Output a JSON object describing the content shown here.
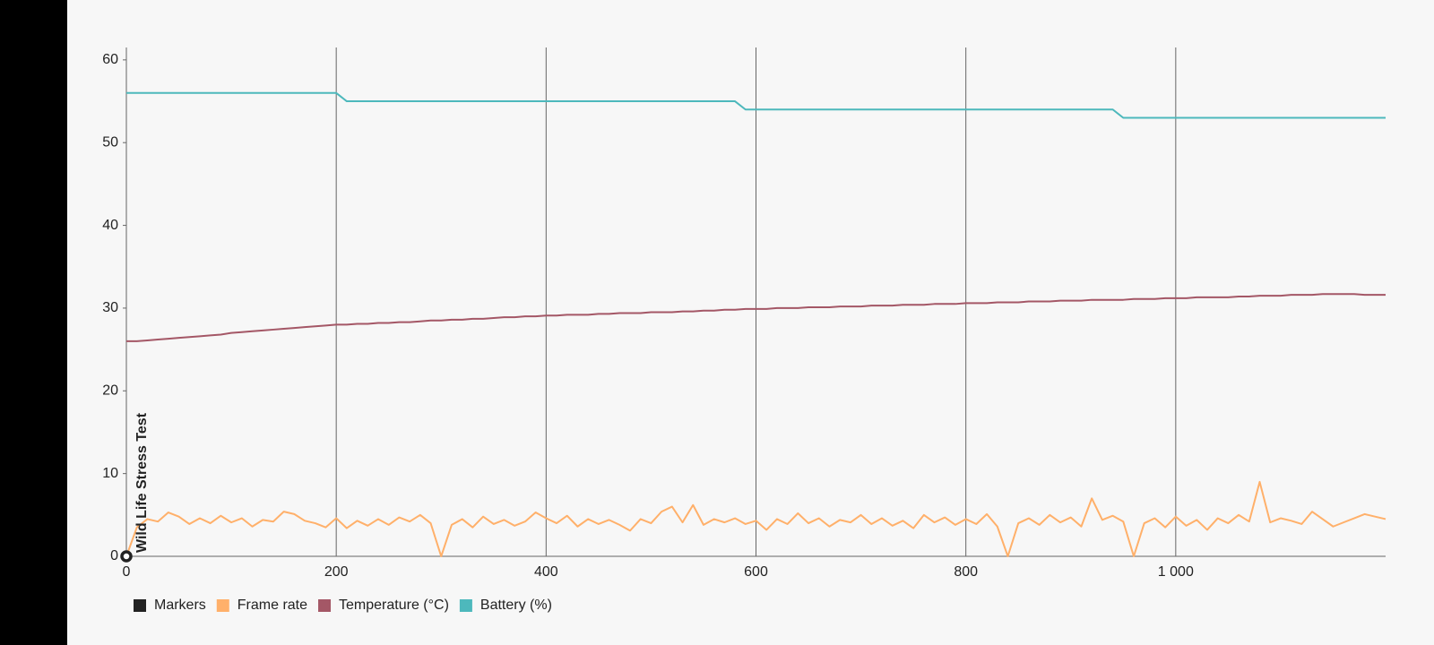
{
  "chart_data": {
    "type": "line",
    "x": [
      0,
      10,
      20,
      30,
      40,
      50,
      60,
      70,
      80,
      90,
      100,
      110,
      120,
      130,
      140,
      150,
      160,
      170,
      180,
      190,
      200,
      210,
      220,
      230,
      240,
      250,
      260,
      270,
      280,
      290,
      300,
      310,
      320,
      330,
      340,
      350,
      360,
      370,
      380,
      390,
      400,
      410,
      420,
      430,
      440,
      450,
      460,
      470,
      480,
      490,
      500,
      510,
      520,
      530,
      540,
      550,
      560,
      570,
      580,
      590,
      600,
      610,
      620,
      630,
      640,
      650,
      660,
      670,
      680,
      690,
      700,
      710,
      720,
      730,
      740,
      750,
      760,
      770,
      780,
      790,
      800,
      810,
      820,
      830,
      840,
      850,
      860,
      870,
      880,
      890,
      900,
      910,
      920,
      930,
      940,
      950,
      960,
      970,
      980,
      990,
      1000,
      1010,
      1020,
      1030,
      1040,
      1050,
      1060,
      1070,
      1080,
      1090,
      1100,
      1110,
      1120,
      1130,
      1140,
      1150,
      1160,
      1170,
      1180,
      1190,
      1200
    ],
    "markers": {
      "name": "Markers",
      "color": "#222222",
      "x": [
        0
      ],
      "labels": [
        "Wild Life Stress Test"
      ]
    },
    "series": [
      {
        "name": "Frame rate",
        "color": "#ffb06a",
        "values": [
          0,
          3.5,
          4.5,
          4.2,
          5.3,
          4.8,
          3.9,
          4.6,
          4.0,
          4.9,
          4.1,
          4.6,
          3.6,
          4.4,
          4.2,
          5.4,
          5.1,
          4.3,
          4.0,
          3.5,
          4.6,
          3.4,
          4.3,
          3.7,
          4.5,
          3.8,
          4.7,
          4.2,
          5.0,
          4.0,
          0,
          3.8,
          4.5,
          3.5,
          4.8,
          3.9,
          4.4,
          3.7,
          4.2,
          5.3,
          4.6,
          4.0,
          4.9,
          3.6,
          4.5,
          3.9,
          4.4,
          3.8,
          3.1,
          4.5,
          4.0,
          5.4,
          6.0,
          4.1,
          6.2,
          3.8,
          4.5,
          4.1,
          4.6,
          3.9,
          4.3,
          3.2,
          4.5,
          3.9,
          5.2,
          4.0,
          4.6,
          3.6,
          4.4,
          4.1,
          5.0,
          3.9,
          4.6,
          3.7,
          4.3,
          3.4,
          5.0,
          4.1,
          4.7,
          3.8,
          4.5,
          3.9,
          5.1,
          3.6,
          0,
          4.0,
          4.6,
          3.8,
          5.0,
          4.1,
          4.7,
          3.6,
          7.0,
          4.4,
          4.9,
          4.2,
          0,
          4.0,
          4.6,
          3.5,
          4.8,
          3.7,
          4.4,
          3.2,
          4.6,
          4.0,
          5.0,
          4.2,
          9.0,
          4.1,
          4.6,
          4.3,
          3.9,
          5.4,
          4.5,
          3.6,
          4.1,
          4.6,
          5.1,
          4.8,
          4.5
        ]
      },
      {
        "name": "Temperature (°C)",
        "color": "#a45766",
        "values": [
          26.0,
          26.0,
          26.1,
          26.2,
          26.3,
          26.4,
          26.5,
          26.6,
          26.7,
          26.8,
          27.0,
          27.1,
          27.2,
          27.3,
          27.4,
          27.5,
          27.6,
          27.7,
          27.8,
          27.9,
          28.0,
          28.0,
          28.1,
          28.1,
          28.2,
          28.2,
          28.3,
          28.3,
          28.4,
          28.5,
          28.5,
          28.6,
          28.6,
          28.7,
          28.7,
          28.8,
          28.9,
          28.9,
          29.0,
          29.0,
          29.1,
          29.1,
          29.2,
          29.2,
          29.2,
          29.3,
          29.3,
          29.4,
          29.4,
          29.4,
          29.5,
          29.5,
          29.5,
          29.6,
          29.6,
          29.7,
          29.7,
          29.8,
          29.8,
          29.9,
          29.9,
          29.9,
          30.0,
          30.0,
          30.0,
          30.1,
          30.1,
          30.1,
          30.2,
          30.2,
          30.2,
          30.3,
          30.3,
          30.3,
          30.4,
          30.4,
          30.4,
          30.5,
          30.5,
          30.5,
          30.6,
          30.6,
          30.6,
          30.7,
          30.7,
          30.7,
          30.8,
          30.8,
          30.8,
          30.9,
          30.9,
          30.9,
          31.0,
          31.0,
          31.0,
          31.0,
          31.1,
          31.1,
          31.1,
          31.2,
          31.2,
          31.2,
          31.3,
          31.3,
          31.3,
          31.3,
          31.4,
          31.4,
          31.5,
          31.5,
          31.5,
          31.6,
          31.6,
          31.6,
          31.7,
          31.7,
          31.7,
          31.7,
          31.6,
          31.6,
          31.6
        ]
      },
      {
        "name": "Battery (%)",
        "color": "#4db8bc",
        "values": [
          56,
          56,
          56,
          56,
          56,
          56,
          56,
          56,
          56,
          56,
          56,
          56,
          56,
          56,
          56,
          56,
          56,
          56,
          56,
          56,
          56,
          55,
          55,
          55,
          55,
          55,
          55,
          55,
          55,
          55,
          55,
          55,
          55,
          55,
          55,
          55,
          55,
          55,
          55,
          55,
          55,
          55,
          55,
          55,
          55,
          55,
          55,
          55,
          55,
          55,
          55,
          55,
          55,
          55,
          55,
          55,
          55,
          55,
          55,
          54,
          54,
          54,
          54,
          54,
          54,
          54,
          54,
          54,
          54,
          54,
          54,
          54,
          54,
          54,
          54,
          54,
          54,
          54,
          54,
          54,
          54,
          54,
          54,
          54,
          54,
          54,
          54,
          54,
          54,
          54,
          54,
          54,
          54,
          54,
          54,
          53,
          53,
          53,
          53,
          53,
          53,
          53,
          53,
          53,
          53,
          53,
          53,
          53,
          53,
          53,
          53,
          53,
          53,
          53,
          53,
          53,
          53,
          53,
          53,
          53,
          53
        ]
      }
    ],
    "xlim": [
      0,
      1200
    ],
    "xticks": [
      0,
      200,
      400,
      600,
      800,
      {
        "value": 1000,
        "label": "1 000"
      }
    ],
    "ylim": [
      0,
      61.5
    ],
    "yticks": [
      0,
      10,
      20,
      30,
      40,
      50,
      60
    ],
    "grid": "x"
  }
}
